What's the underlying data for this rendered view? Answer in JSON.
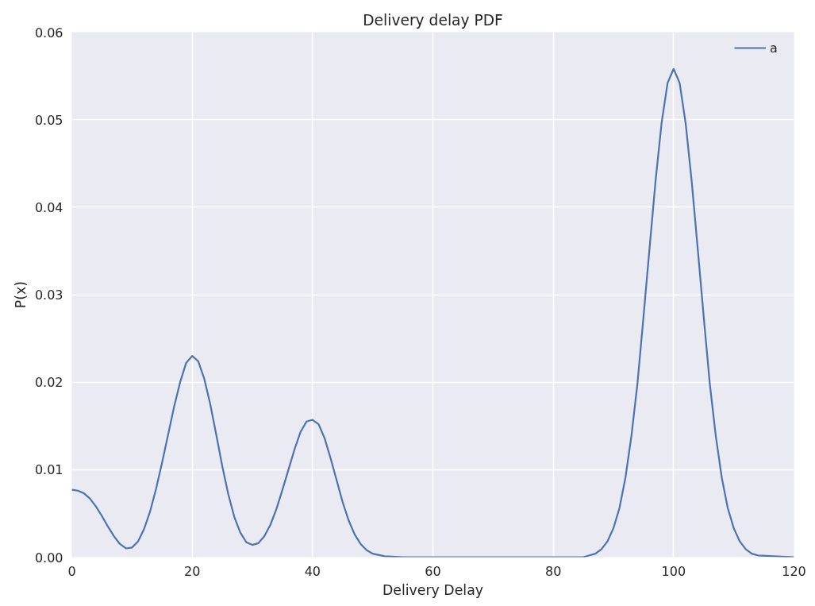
{
  "chart_data": {
    "type": "line",
    "title": "Delivery delay PDF",
    "xlabel": "Delivery Delay",
    "ylabel": "P(x)",
    "xlim": [
      0,
      120
    ],
    "ylim": [
      0,
      0.06
    ],
    "xticks": [
      0,
      20,
      40,
      60,
      80,
      100,
      120
    ],
    "yticks": [
      {
        "value": 0,
        "label": "0.00"
      },
      {
        "value": 0.01,
        "label": "0.01"
      },
      {
        "value": 0.02,
        "label": "0.02"
      },
      {
        "value": 0.03,
        "label": "0.03"
      },
      {
        "value": 0.04,
        "label": "0.04"
      },
      {
        "value": 0.05,
        "label": "0.05"
      },
      {
        "value": 0.06,
        "label": "0.06"
      }
    ],
    "grid": true,
    "legend": "top right",
    "marker": "none",
    "line_style": "solid",
    "series": [
      {
        "name": "a",
        "color": "#4c72b0",
        "x": [
          0,
          1,
          2,
          3,
          4,
          5,
          6,
          7,
          8,
          9,
          10,
          11,
          12,
          13,
          14,
          15,
          16,
          17,
          18,
          19,
          20,
          21,
          22,
          23,
          24,
          25,
          26,
          27,
          28,
          29,
          30,
          31,
          32,
          33,
          34,
          35,
          36,
          37,
          38,
          39,
          40,
          41,
          42,
          43,
          44,
          45,
          46,
          47,
          48,
          49,
          50,
          52,
          55,
          85,
          86,
          87,
          88,
          89,
          90,
          91,
          92,
          93,
          94,
          95,
          96,
          97,
          98,
          99,
          100,
          101,
          102,
          103,
          104,
          105,
          106,
          107,
          108,
          109,
          110,
          111,
          112,
          113,
          114,
          120
        ],
        "values": [
          0.0077,
          0.0076,
          0.0073,
          0.0067,
          0.0058,
          0.0047,
          0.0035,
          0.0024,
          0.0015,
          0.001,
          0.0011,
          0.0018,
          0.0032,
          0.0052,
          0.0078,
          0.0108,
          0.014,
          0.0172,
          0.02,
          0.0222,
          0.023,
          0.0224,
          0.0204,
          0.0175,
          0.014,
          0.0104,
          0.0072,
          0.0046,
          0.0028,
          0.0017,
          0.0014,
          0.0016,
          0.0024,
          0.0037,
          0.0055,
          0.0077,
          0.01,
          0.0123,
          0.0143,
          0.0155,
          0.0157,
          0.0152,
          0.0136,
          0.0113,
          0.0088,
          0.0063,
          0.0042,
          0.0026,
          0.0015,
          0.0008,
          0.0004,
          0.0001,
          0,
          0,
          0.0002,
          0.0004,
          0.0009,
          0.0018,
          0.0033,
          0.0056,
          0.0091,
          0.0139,
          0.0199,
          0.0275,
          0.0353,
          0.043,
          0.0496,
          0.0542,
          0.0558,
          0.0542,
          0.0496,
          0.043,
          0.0353,
          0.0275,
          0.0199,
          0.0139,
          0.0091,
          0.0056,
          0.0033,
          0.0018,
          0.0009,
          0.0004,
          0.0002,
          0
        ]
      }
    ]
  }
}
